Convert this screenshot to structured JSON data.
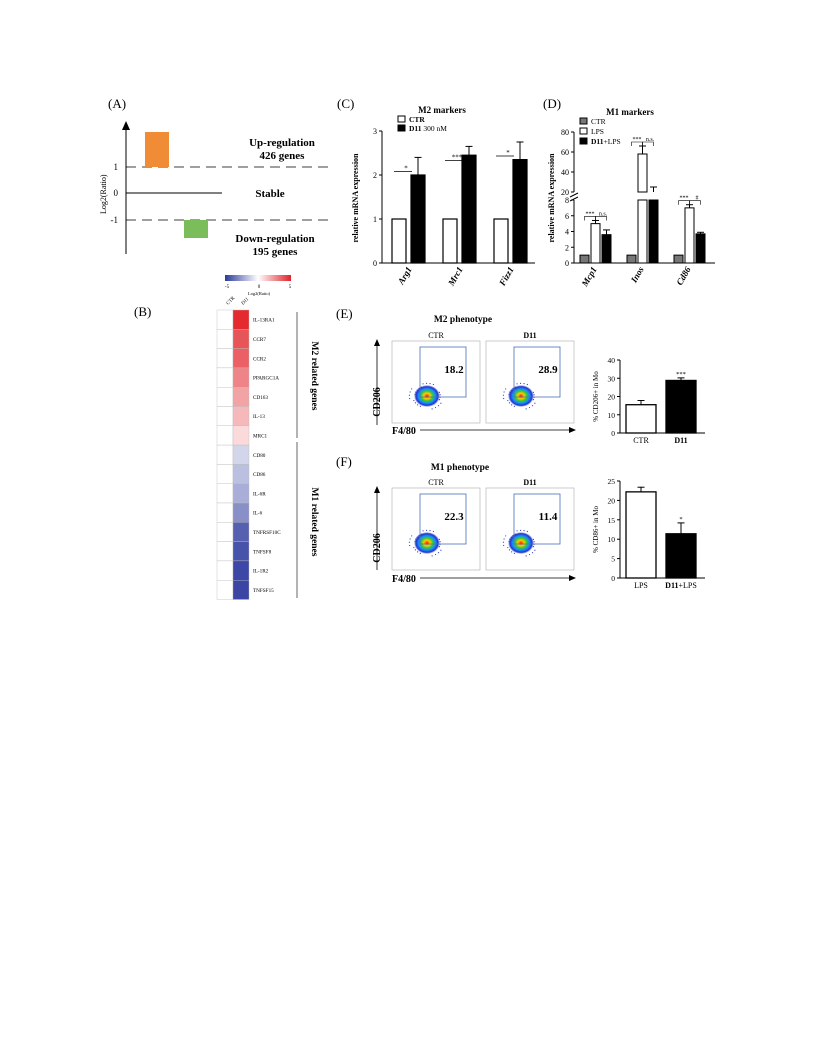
{
  "panelA": {
    "letter": "(A)",
    "ylabel": "Log2(Ratio)",
    "ticks": [
      "1",
      "0",
      "-1"
    ],
    "up_label": "Up-regulation",
    "up_count": "426 genes",
    "stable_label": "Stable",
    "down_label": "Down-regulation",
    "down_count": "195 genes",
    "colors": {
      "up": "#f08c35",
      "down": "#7bbd5a"
    }
  },
  "panelB": {
    "letter": "(B)",
    "scale_ticks": [
      "-5",
      "0",
      "5"
    ],
    "scale_label": "Log2(Ratio)",
    "columns": [
      "CTR",
      "D11"
    ],
    "m2_group_label": "M2 related genes",
    "m1_group_label": "M1 related genes",
    "genes": [
      {
        "name": "IL-13RA1",
        "d11_color": "#e52a2f"
      },
      {
        "name": "CCR7",
        "d11_color": "#e85558"
      },
      {
        "name": "CCR2",
        "d11_color": "#ea6064"
      },
      {
        "name": "PPARGC1A",
        "d11_color": "#ee8487"
      },
      {
        "name": "CD163",
        "d11_color": "#f2a3a5"
      },
      {
        "name": "IL-13",
        "d11_color": "#f5b9bb"
      },
      {
        "name": "MRC1",
        "d11_color": "#fadadb"
      },
      {
        "name": "CD80",
        "d11_color": "#d3d6ea"
      },
      {
        "name": "CD86",
        "d11_color": "#bbc0e0"
      },
      {
        "name": "IL-6R",
        "d11_color": "#a8aed8"
      },
      {
        "name": "IL-6",
        "d11_color": "#8990c8"
      },
      {
        "name": "TNFRSF10C",
        "d11_color": "#5660b0"
      },
      {
        "name": "TNFSF8",
        "d11_color": "#4752aa"
      },
      {
        "name": "IL-1R2",
        "d11_color": "#3d48a6"
      },
      {
        "name": "TNFSF15",
        "d11_color": "#3a45a4"
      }
    ]
  },
  "chart_data": [
    {
      "panel": "C",
      "type": "bar",
      "title": "M2 markers",
      "ylabel": "relative mRNA expression",
      "ylim": [
        0,
        3
      ],
      "yticks": [
        "0",
        "1",
        "2",
        "3"
      ],
      "categories": [
        "Arg1",
        "Mrc1",
        "Fizz1"
      ],
      "series": [
        {
          "name": "CTR",
          "values": [
            1.0,
            1.0,
            1.0
          ],
          "errors": [
            0,
            0,
            0
          ],
          "color": "#ffffff"
        },
        {
          "name": "D11",
          "values": [
            2.0,
            2.45,
            2.35
          ],
          "errors": [
            0.4,
            0.2,
            0.4
          ],
          "color": "#000000"
        }
      ],
      "legend": [
        {
          "name": "CTR",
          "suffix": ""
        },
        {
          "name": "D11",
          "suffix": "300 nM"
        }
      ],
      "significance": [
        "*",
        "***",
        "*"
      ]
    },
    {
      "panel": "D",
      "type": "bar",
      "title": "M1 markers",
      "ylabel": "relative mRNA expression",
      "upper_ylim": [
        20,
        80
      ],
      "upper_yticks": [
        "20",
        "40",
        "60",
        "80"
      ],
      "lower_ylim": [
        0,
        8
      ],
      "lower_yticks": [
        "0",
        "2",
        "4",
        "6",
        "8"
      ],
      "categories": [
        "Mcp1",
        "Inos",
        "Cd86"
      ],
      "series": [
        {
          "name": "CTR",
          "values": [
            1.0,
            1.0,
            1.0
          ],
          "errors": [
            0,
            0,
            0
          ],
          "color": "#777777"
        },
        {
          "name": "LPS",
          "values": [
            5.0,
            58,
            7.0
          ],
          "errors": [
            0.4,
            8,
            0.4
          ],
          "color": "#ffffff"
        },
        {
          "name": "D11+LPS",
          "values": [
            3.6,
            20,
            3.7
          ],
          "errors": [
            0.6,
            5,
            0.2
          ],
          "color": "#000000"
        }
      ],
      "legend": [
        "CTR",
        "LPS",
        "D11+LPS"
      ],
      "significance": [
        [
          "***",
          "n.s."
        ],
        [
          "***",
          "n.s."
        ],
        [
          "***",
          "#"
        ]
      ]
    },
    {
      "panel": "E",
      "type": "bar",
      "ylabel": "% CD206+ in Mo",
      "ylim": [
        0,
        40
      ],
      "yticks": [
        "0",
        "10",
        "20",
        "30",
        "40"
      ],
      "categories": [
        "CTR",
        "D11"
      ],
      "values": [
        15.5,
        28.8
      ],
      "errors": [
        2.3,
        1.4
      ],
      "colors": [
        "#ffffff",
        "#000000"
      ],
      "significance": "***"
    },
    {
      "panel": "F",
      "type": "bar",
      "ylabel": "% CD86+ in Mo",
      "ylim": [
        0,
        25
      ],
      "yticks": [
        "0",
        "5",
        "10",
        "15",
        "20",
        "25"
      ],
      "categories": [
        "LPS",
        "D11+LPS"
      ],
      "values": [
        22.2,
        11.4
      ],
      "errors": [
        1.2,
        2.8
      ],
      "colors": [
        "#ffffff",
        "#000000"
      ],
      "significance": "*"
    }
  ],
  "panelC": {
    "letter": "(C)"
  },
  "panelD": {
    "letter": "(D)"
  },
  "panelE": {
    "letter": "(E)",
    "title": "M2 phenotype",
    "yaxis": "CD206",
    "xaxis": "F4/80",
    "plots": [
      {
        "label": "CTR",
        "value": "18.2"
      },
      {
        "label": "D11",
        "value": "28.9"
      }
    ]
  },
  "panelF": {
    "letter": "(F)",
    "title": "M1 phenotype",
    "yaxis": "CD206",
    "xaxis": "F4/80",
    "plots": [
      {
        "label": "CTR",
        "value": "22.3"
      },
      {
        "label": "D11",
        "value": "11.4"
      }
    ]
  }
}
